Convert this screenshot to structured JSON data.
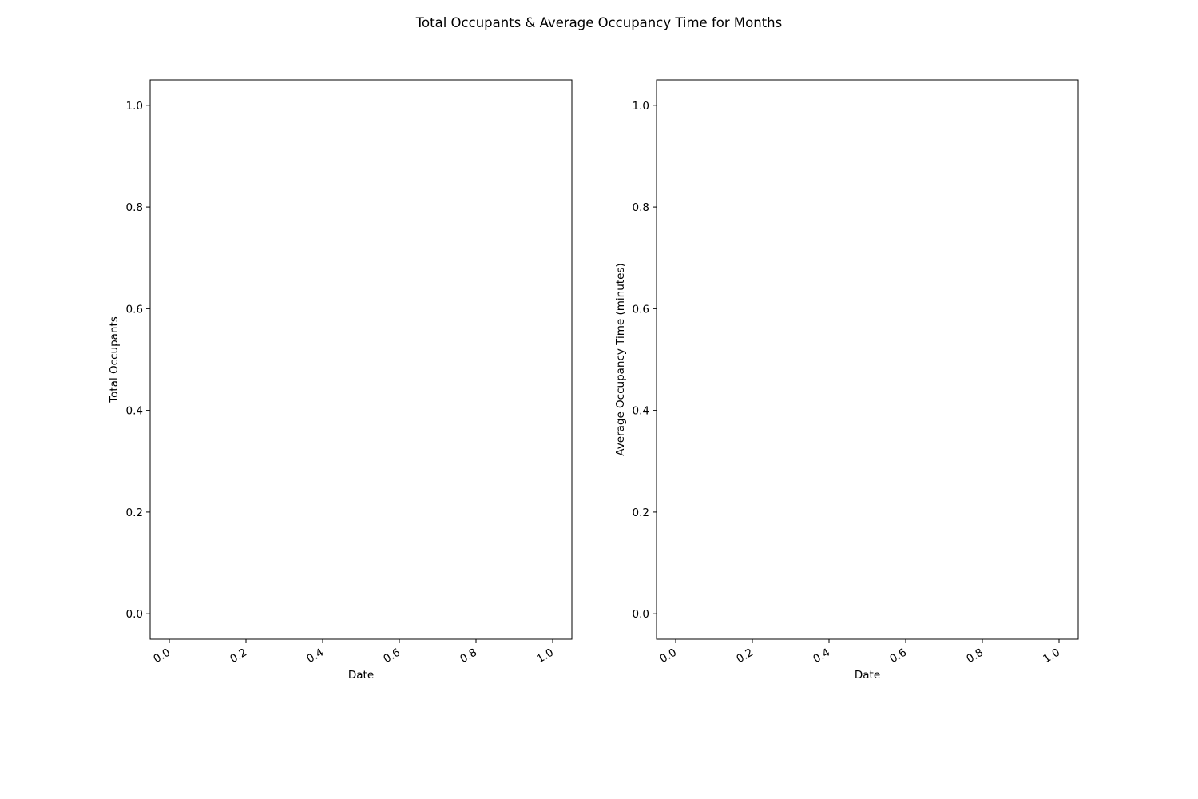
{
  "figure": {
    "title": "Total Occupants & Average Occupancy Time for Months"
  },
  "chart_data": [
    {
      "type": "line",
      "title": "",
      "xlabel": "Date",
      "ylabel": "Total Occupants",
      "xlim": [
        -0.05,
        1.05
      ],
      "ylim": [
        -0.05,
        1.05
      ],
      "xticks": [
        0.0,
        0.2,
        0.4,
        0.6,
        0.8,
        1.0
      ],
      "xtick_labels": [
        "0.0",
        "0.2",
        "0.4",
        "0.6",
        "0.8",
        "1.0"
      ],
      "yticks": [
        0.0,
        0.2,
        0.4,
        0.6,
        0.8,
        1.0
      ],
      "ytick_labels": [
        "0.0",
        "0.2",
        "0.4",
        "0.6",
        "0.8",
        "1.0"
      ],
      "xtick_rotation": 30,
      "grid": false,
      "series": []
    },
    {
      "type": "line",
      "title": "",
      "xlabel": "Date",
      "ylabel": "Average Occupancy Time (minutes)",
      "xlim": [
        -0.05,
        1.05
      ],
      "ylim": [
        -0.05,
        1.05
      ],
      "xticks": [
        0.0,
        0.2,
        0.4,
        0.6,
        0.8,
        1.0
      ],
      "xtick_labels": [
        "0.0",
        "0.2",
        "0.4",
        "0.6",
        "0.8",
        "1.0"
      ],
      "yticks": [
        0.0,
        0.2,
        0.4,
        0.6,
        0.8,
        1.0
      ],
      "ytick_labels": [
        "0.0",
        "0.2",
        "0.4",
        "0.6",
        "0.8",
        "1.0"
      ],
      "xtick_rotation": 30,
      "grid": false,
      "series": []
    }
  ]
}
